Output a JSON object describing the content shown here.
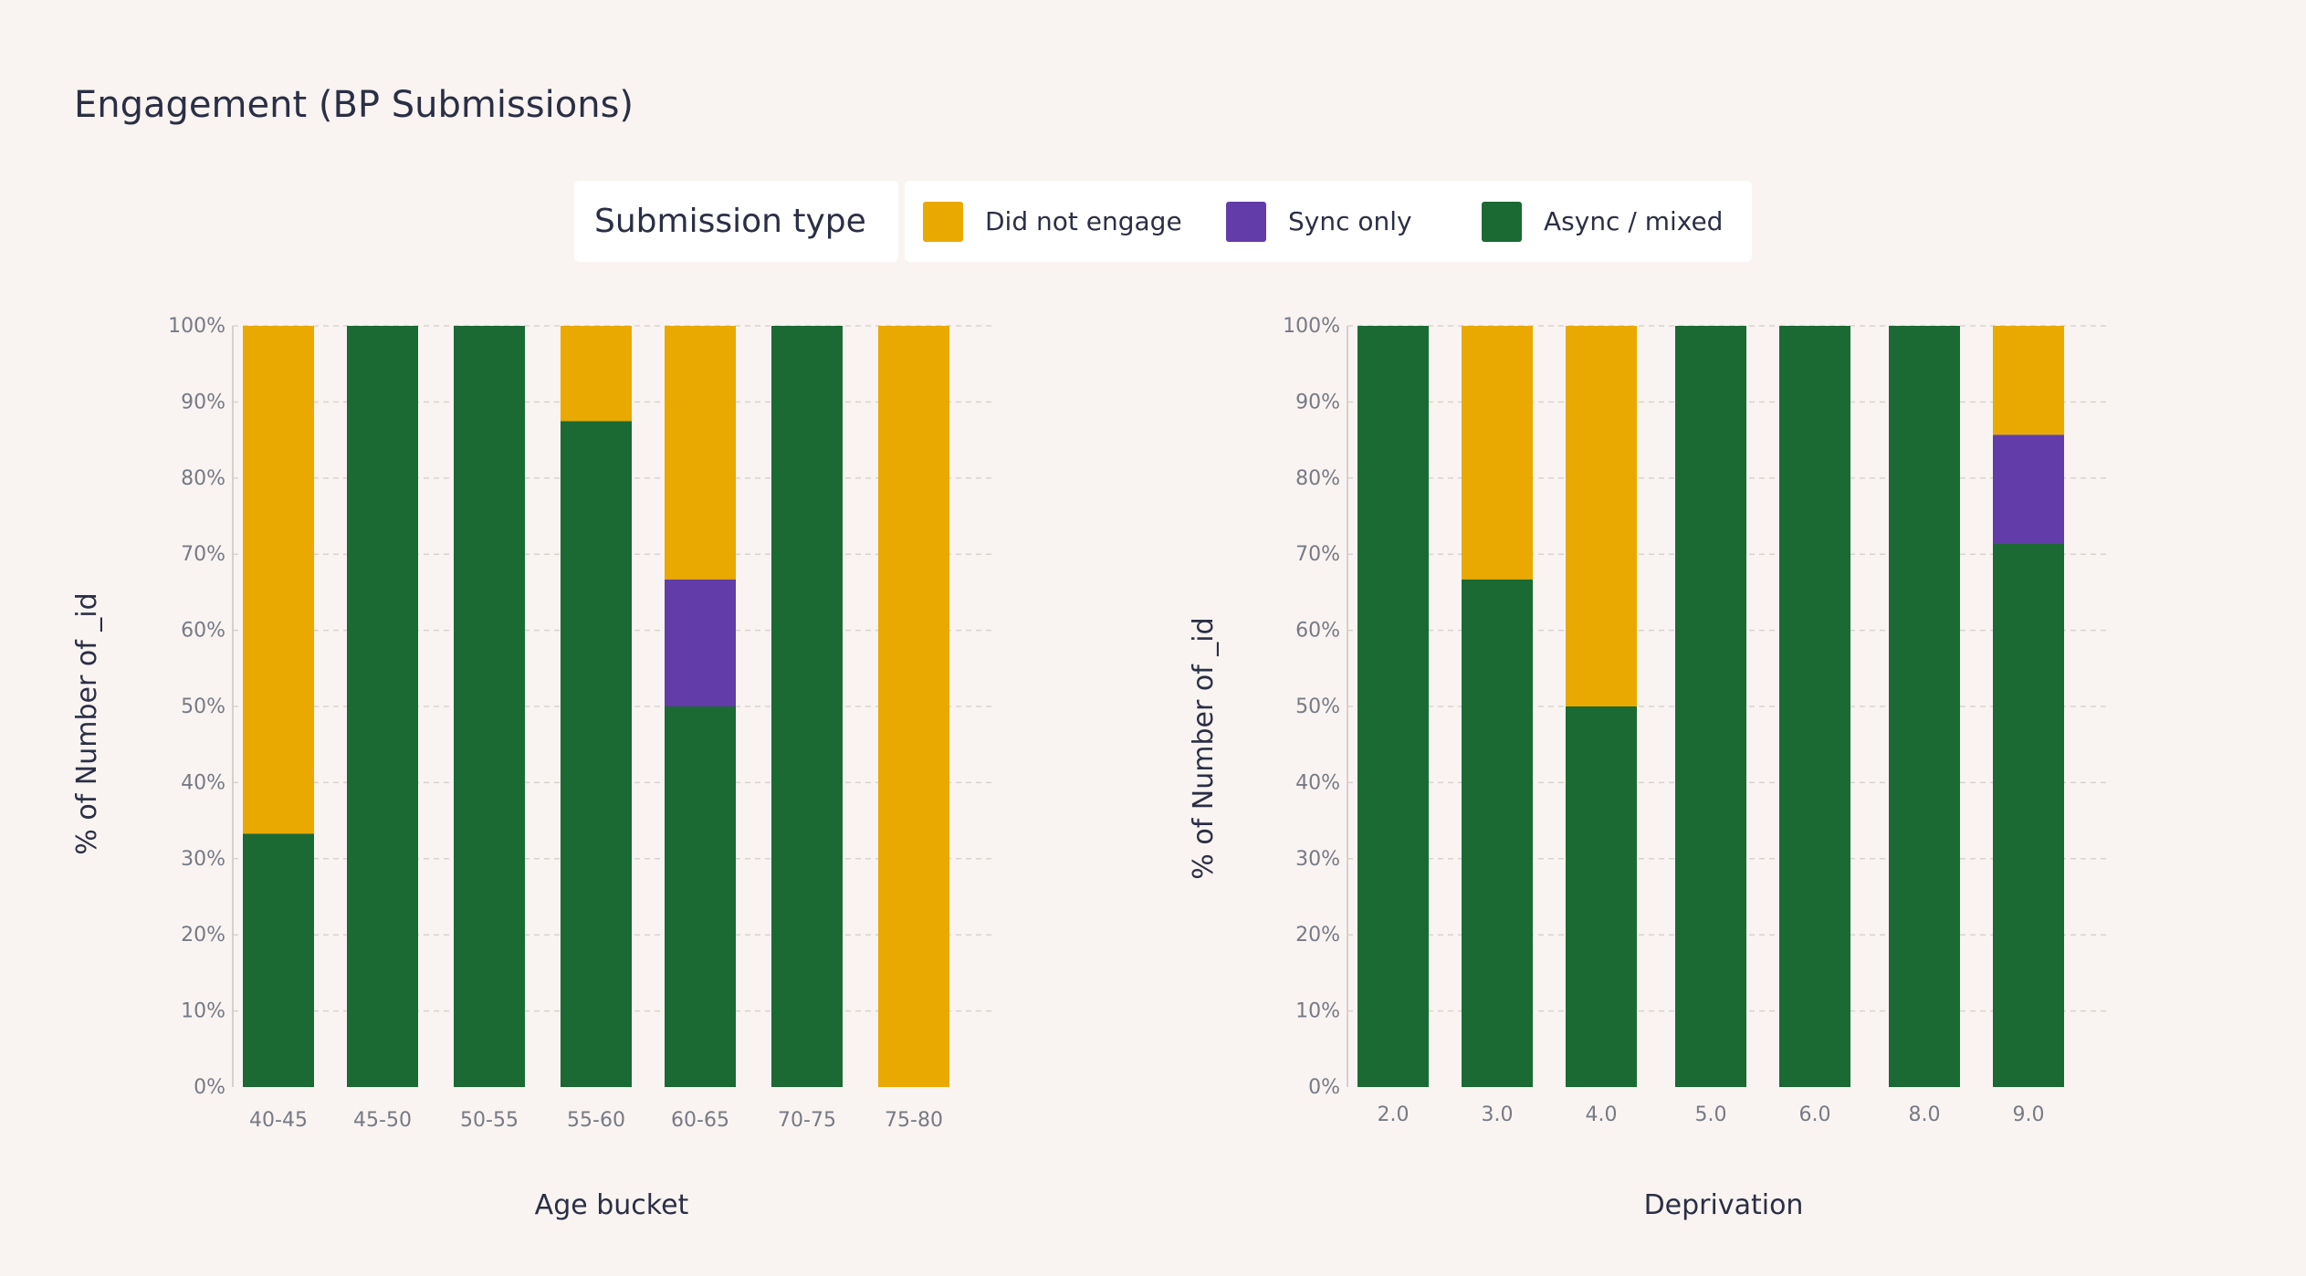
{
  "title": "Engagement (BP Submissions)",
  "legend": {
    "title": "Submission type",
    "items": [
      {
        "label": "Did not engage",
        "color": "#e9a900"
      },
      {
        "label": "Sync only",
        "color": "#623ca8"
      },
      {
        "label": "Async / mixed",
        "color": "#1b6a33"
      }
    ]
  },
  "chart_data": [
    {
      "type": "bar",
      "stacked": true,
      "normalized": true,
      "title": "",
      "xlabel": "Age bucket",
      "ylabel": "% of Number of _id",
      "ylim": [
        0,
        100
      ],
      "yticks": [
        "0%",
        "10%",
        "20%",
        "30%",
        "40%",
        "50%",
        "60%",
        "70%",
        "80%",
        "90%",
        "100%"
      ],
      "categories": [
        "40-45",
        "45-50",
        "50-55",
        "55-60",
        "60-65",
        "70-75",
        "75-80"
      ],
      "series": [
        {
          "name": "Async / mixed",
          "color": "#1b6a33",
          "values": [
            33.3,
            100,
            100,
            87.5,
            50,
            100,
            0
          ]
        },
        {
          "name": "Sync only",
          "color": "#623ca8",
          "values": [
            0,
            0,
            0,
            0,
            16.7,
            0,
            0
          ]
        },
        {
          "name": "Did not engage",
          "color": "#e9a900",
          "values": [
            66.7,
            0,
            0,
            12.5,
            33.3,
            0,
            100
          ]
        }
      ],
      "grid": true
    },
    {
      "type": "bar",
      "stacked": true,
      "normalized": true,
      "title": "",
      "xlabel": "Deprivation",
      "ylabel": "% of Number of _id",
      "ylim": [
        0,
        100
      ],
      "yticks": [
        "0%",
        "10%",
        "20%",
        "30%",
        "40%",
        "50%",
        "60%",
        "70%",
        "80%",
        "90%",
        "100%"
      ],
      "categories": [
        "2.0",
        "3.0",
        "4.0",
        "5.0",
        "6.0",
        "8.0",
        "9.0"
      ],
      "series": [
        {
          "name": "Async / mixed",
          "color": "#1b6a33",
          "values": [
            100,
            66.7,
            50,
            100,
            100,
            100,
            71.4
          ]
        },
        {
          "name": "Sync only",
          "color": "#623ca8",
          "values": [
            0,
            0,
            0,
            0,
            0,
            0,
            14.3
          ]
        },
        {
          "name": "Did not engage",
          "color": "#e9a900",
          "values": [
            0,
            33.3,
            50,
            0,
            0,
            0,
            14.3
          ]
        }
      ],
      "grid": true
    }
  ]
}
